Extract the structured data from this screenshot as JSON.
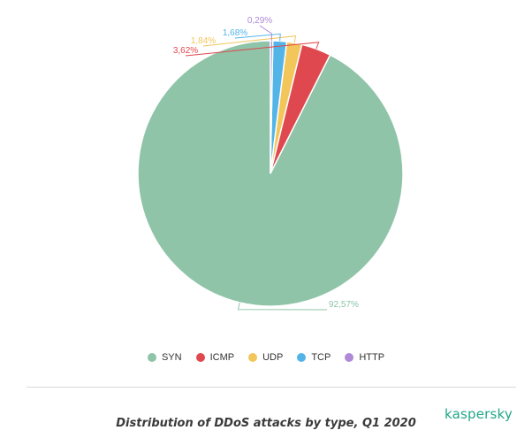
{
  "chart_data": {
    "type": "pie",
    "categories": [
      "SYN",
      "ICMP",
      "UDP",
      "TCP",
      "HTTP"
    ],
    "values": [
      92.57,
      3.62,
      1.84,
      1.68,
      0.29
    ],
    "value_labels": [
      "92,57%",
      "3,62%",
      "1,84%",
      "1,68%",
      "0,29%"
    ],
    "colors": [
      "#8fc4a8",
      "#e0484f",
      "#f2c65b",
      "#53b4e8",
      "#b08ad6"
    ],
    "title": "Distribution of DDoS attacks by type, Q1 2020",
    "legend_position": "bottom-center"
  },
  "caption": "Distribution of DDoS attacks by type, Q1 2020",
  "brand": "kaspersky",
  "brand_color": "#23a78a"
}
